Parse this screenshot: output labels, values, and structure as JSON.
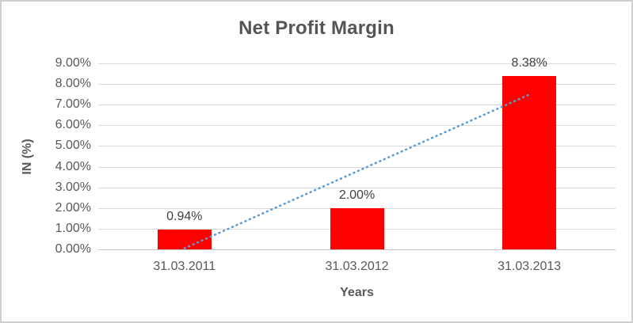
{
  "chart_data": {
    "type": "bar",
    "title": "Net Profit Margin",
    "xlabel": "Years",
    "ylabel": "IN (%)",
    "categories": [
      "31.03.2011",
      "31.03.2012",
      "31.03.2013"
    ],
    "values": [
      0.94,
      2.0,
      8.38
    ],
    "data_labels": [
      "0.94%",
      "2.00%",
      "8.38%"
    ],
    "ylim": [
      0,
      9
    ],
    "ytick_step": 1,
    "ytick_labels": [
      "0.00%",
      "1.00%",
      "2.00%",
      "3.00%",
      "4.00%",
      "5.00%",
      "6.00%",
      "7.00%",
      "8.00%",
      "9.00%"
    ],
    "grid": true,
    "legend": "none",
    "bar_color": "#ff0000",
    "text_color": "#595959",
    "gridline_color": "#d9d9d9",
    "trendline": {
      "type": "linear",
      "style": "dotted",
      "color": "#5b9bd5",
      "start_pct": 0.05,
      "end_pct": 7.49
    }
  }
}
